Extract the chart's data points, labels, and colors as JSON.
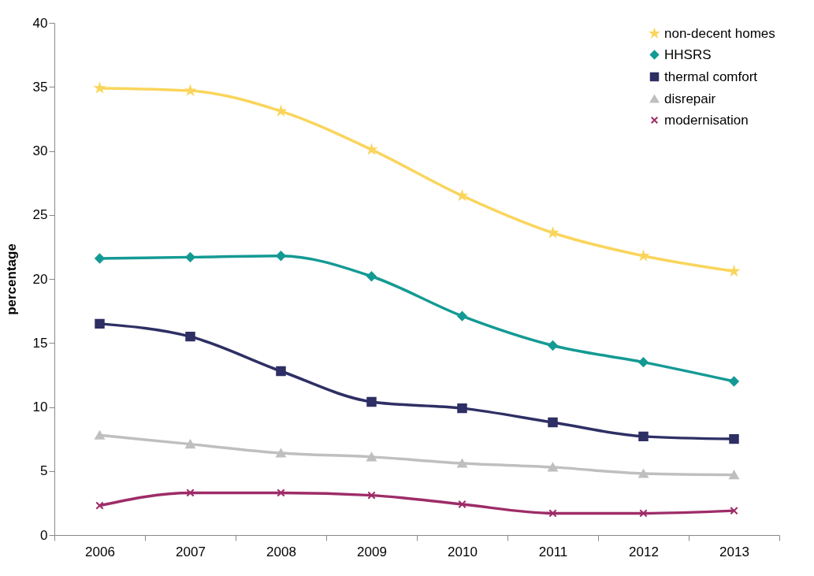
{
  "chart_data": {
    "type": "line",
    "ylabel": "percentage",
    "categories": [
      "2006",
      "2007",
      "2008",
      "2009",
      "2010",
      "2011",
      "2012",
      "2013"
    ],
    "ylim": [
      0,
      40
    ],
    "yticks": [
      0,
      5,
      10,
      15,
      20,
      25,
      30,
      35,
      40
    ],
    "grid": false,
    "legend": "top right",
    "line_style": "solid",
    "series": [
      {
        "name": "non-decent homes",
        "color": "#fad55c",
        "marker": "star",
        "values": [
          34.9,
          34.7,
          33.1,
          30.1,
          26.5,
          23.6,
          21.8,
          20.6
        ]
      },
      {
        "name": "HHSRS",
        "color": "#149a94",
        "marker": "diamond",
        "values": [
          21.6,
          21.7,
          21.8,
          20.2,
          17.1,
          14.8,
          13.5,
          12.0
        ]
      },
      {
        "name": "thermal comfort",
        "color": "#2e2f64",
        "marker": "square",
        "values": [
          16.5,
          15.5,
          12.8,
          10.4,
          9.9,
          8.8,
          7.7,
          7.5
        ]
      },
      {
        "name": "disrepair",
        "color": "#bfbfbf",
        "marker": "triangle",
        "values": [
          7.8,
          7.1,
          6.4,
          6.1,
          5.6,
          5.3,
          4.8,
          4.7
        ]
      },
      {
        "name": "modernisation",
        "color": "#9e2c68",
        "marker": "cross",
        "values": [
          2.3,
          3.3,
          3.3,
          3.1,
          2.4,
          1.7,
          1.7,
          1.9
        ]
      }
    ]
  }
}
